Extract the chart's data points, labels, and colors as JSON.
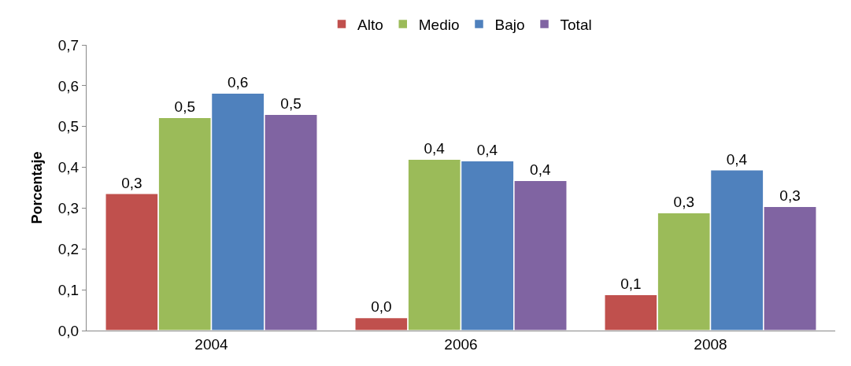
{
  "chart_data": {
    "type": "bar",
    "ylabel": "Porcentaje",
    "categories": [
      "2004",
      "2006",
      "2008"
    ],
    "series": [
      {
        "name": "Alto",
        "color": "#c0504d",
        "values": [
          0.336,
          0.032,
          0.088
        ],
        "value_labels": [
          "0,3",
          "0,0",
          "0,1"
        ]
      },
      {
        "name": "Medio",
        "color": "#9bbb59",
        "values": [
          0.522,
          0.42,
          0.289
        ],
        "value_labels": [
          "0,5",
          "0,4",
          "0,3"
        ]
      },
      {
        "name": "Bajo",
        "color": "#4f81bd",
        "values": [
          0.582,
          0.416,
          0.394
        ],
        "value_labels": [
          "0,6",
          "0,4",
          "0,4"
        ]
      },
      {
        "name": "Total",
        "color": "#8064a2",
        "values": [
          0.53,
          0.368,
          0.304
        ],
        "value_labels": [
          "0,5",
          "0,4",
          "0,3"
        ]
      }
    ],
    "ylim": [
      0,
      0.7
    ],
    "yticks": [
      {
        "value": 0,
        "label": "0,0"
      },
      {
        "value": 0.1,
        "label": "0,1"
      },
      {
        "value": 0.2,
        "label": "0,2"
      },
      {
        "value": 0.3,
        "label": "0,3"
      },
      {
        "value": 0.4,
        "label": "0,4"
      },
      {
        "value": 0.5,
        "label": "0,5"
      },
      {
        "value": 0.6,
        "label": "0,6"
      },
      {
        "value": 0.7,
        "label": "0,7"
      }
    ],
    "legend": "top"
  }
}
